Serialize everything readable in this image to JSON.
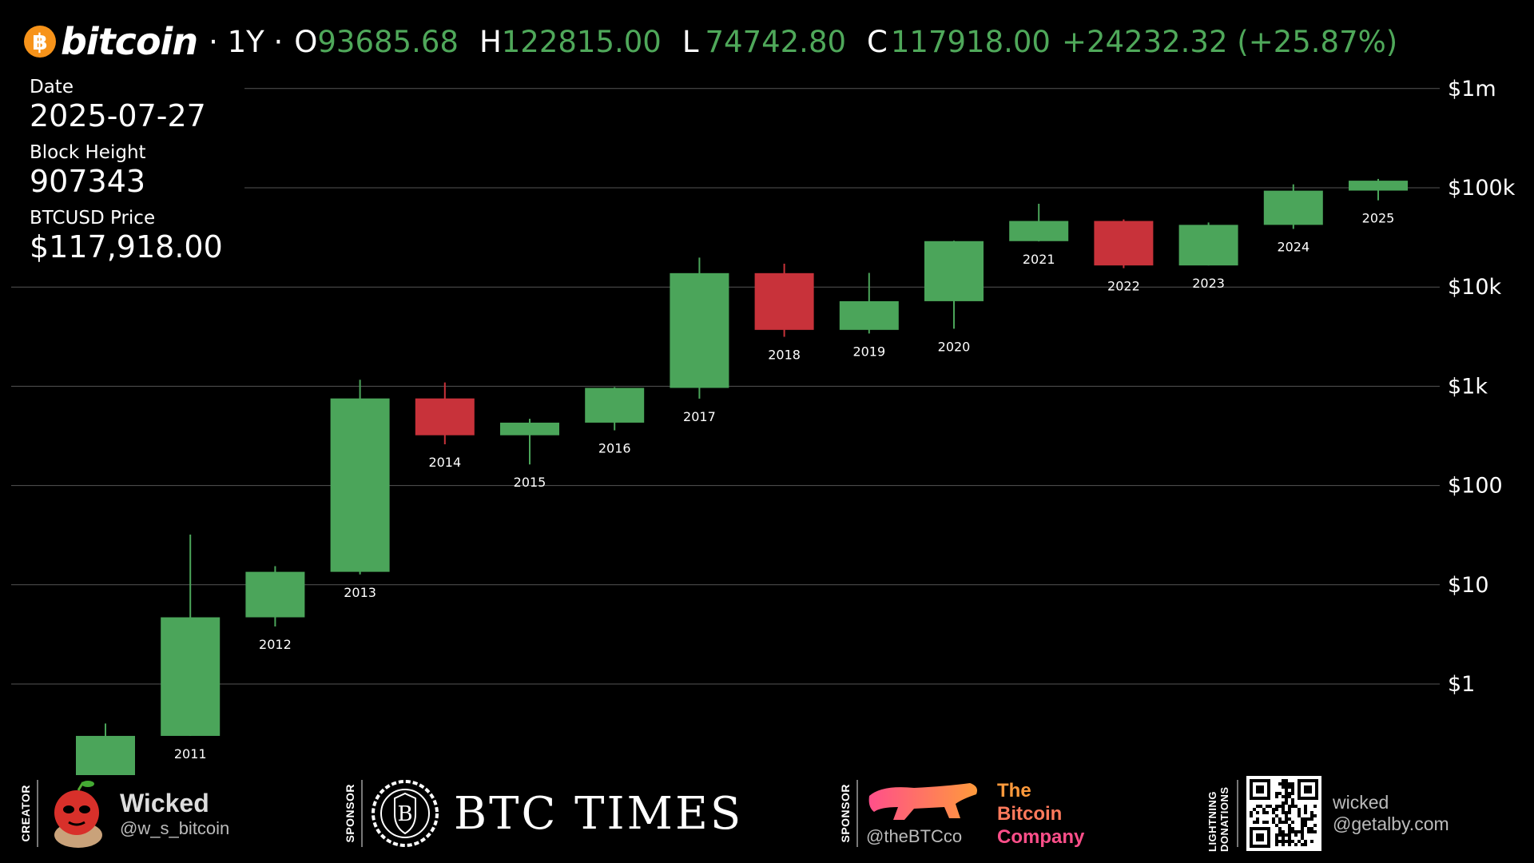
{
  "header": {
    "brand": "bitcoin",
    "brand_icon": "฿",
    "timeframe": "· 1Y ·",
    "open_label": "O",
    "open": "93685.68",
    "high_label": "H",
    "high": "122815.00",
    "low_label": "L",
    "low": "74742.80",
    "close_label": "C",
    "close": "117918.00",
    "change": "+24232.32 (+25.87%)"
  },
  "info": {
    "date_label": "Date",
    "date": "2025-07-27",
    "block_label": "Block Height",
    "block": "907343",
    "price_label": "BTCUSD Price",
    "price": "$117,918.00"
  },
  "colors": {
    "up": "#4ba55a",
    "down": "#c8323a",
    "grid": "#555555",
    "background": "#000000"
  },
  "chart_data": {
    "type": "candlestick",
    "scale": "log",
    "ylim": [
      0.04,
      1000000
    ],
    "y_ticks": [
      {
        "value": 1,
        "label": "$1"
      },
      {
        "value": 10,
        "label": "$10"
      },
      {
        "value": 100,
        "label": "$100"
      },
      {
        "value": 1000,
        "label": "$1k"
      },
      {
        "value": 10000,
        "label": "$10k"
      },
      {
        "value": 100000,
        "label": "$100k"
      },
      {
        "value": 1000000,
        "label": "$1m"
      }
    ],
    "candles": [
      {
        "year": "",
        "open": 0.05,
        "high": 0.4,
        "low": 0.05,
        "close": 0.3
      },
      {
        "year": "2011",
        "open": 0.3,
        "high": 32,
        "low": 0.3,
        "close": 4.7
      },
      {
        "year": "2012",
        "open": 4.7,
        "high": 15.4,
        "low": 3.8,
        "close": 13.5
      },
      {
        "year": "2013",
        "open": 13.5,
        "high": 1163,
        "low": 12.7,
        "close": 754
      },
      {
        "year": "2014",
        "open": 754,
        "high": 1093,
        "low": 260,
        "close": 321
      },
      {
        "year": "2015",
        "open": 321,
        "high": 470,
        "low": 163,
        "close": 430
      },
      {
        "year": "2016",
        "open": 430,
        "high": 980,
        "low": 360,
        "close": 963
      },
      {
        "year": "2017",
        "open": 963,
        "high": 19800,
        "low": 750,
        "close": 13800
      },
      {
        "year": "2018",
        "open": 13800,
        "high": 17200,
        "low": 3150,
        "close": 3700
      },
      {
        "year": "2019",
        "open": 3700,
        "high": 13900,
        "low": 3400,
        "close": 7200
      },
      {
        "year": "2020",
        "open": 7200,
        "high": 29300,
        "low": 3800,
        "close": 29000
      },
      {
        "year": "2021",
        "open": 29000,
        "high": 69000,
        "low": 28800,
        "close": 46300
      },
      {
        "year": "2022",
        "open": 46300,
        "high": 48000,
        "low": 15500,
        "close": 16500
      },
      {
        "year": "2023",
        "open": 16500,
        "high": 44700,
        "low": 16500,
        "close": 42300
      },
      {
        "year": "2024",
        "open": 42300,
        "high": 108300,
        "low": 38500,
        "close": 93500
      },
      {
        "year": "2025",
        "open": 93685.68,
        "high": 122815.0,
        "low": 74742.8,
        "close": 117918.0
      }
    ]
  },
  "footer": {
    "creator_label": "CREATOR",
    "creator_name": "Wicked",
    "creator_handle": "@w_s_bitcoin",
    "sponsor_label_1": "SPONSOR",
    "sponsor_1_name": "BTC TIMES",
    "sponsor_label_2": "SPONSOR",
    "sponsor_2_handle": "@theBTCco",
    "sponsor_2_line1": "The",
    "sponsor_2_line2": "Bitcoin",
    "sponsor_2_line3": "Company",
    "donations_label": "LIGHTNING DONATIONS",
    "donations_name": "wicked",
    "donations_address": "@getalby.com"
  }
}
